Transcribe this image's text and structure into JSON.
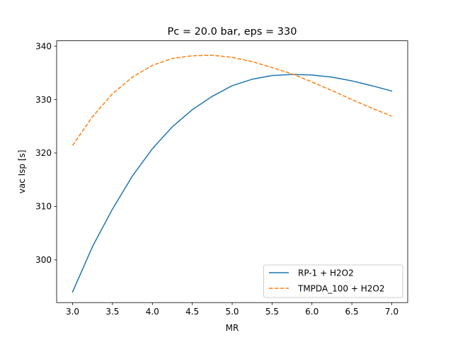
{
  "chart_data": {
    "type": "line",
    "title": "Pc = 20.0 bar, eps = 330",
    "xlabel": "MR",
    "ylabel": "vac Isp [s]",
    "xlim": [
      2.8,
      7.2
    ],
    "ylim": [
      292.0,
      341.0
    ],
    "x_ticks": [
      3.0,
      3.5,
      4.0,
      4.5,
      5.0,
      5.5,
      6.0,
      6.5,
      7.0
    ],
    "x_tick_labels": [
      "3.0",
      "3.5",
      "4.0",
      "4.5",
      "5.0",
      "5.5",
      "6.0",
      "6.5",
      "7.0"
    ],
    "y_ticks": [
      300,
      310,
      320,
      330,
      340
    ],
    "y_tick_labels": [
      "300",
      "310",
      "320",
      "330",
      "340"
    ],
    "grid": false,
    "legend_position": "lower-right",
    "series": [
      {
        "name": "RP-1 + H2O2",
        "color": "#1f77b4",
        "style": "solid",
        "x": [
          3.0,
          3.25,
          3.5,
          3.75,
          4.0,
          4.25,
          4.5,
          4.75,
          5.0,
          5.25,
          5.5,
          5.75,
          6.0,
          6.25,
          6.5,
          6.75,
          7.0
        ],
        "values": [
          294.0,
          302.5,
          309.5,
          315.7,
          320.8,
          324.9,
          328.1,
          330.6,
          332.6,
          333.8,
          334.5,
          334.7,
          334.6,
          334.2,
          333.5,
          332.6,
          331.6
        ]
      },
      {
        "name": "TMPDA_100 + H2O2",
        "color": "#ff7f0e",
        "style": "dashed",
        "x": [
          3.0,
          3.25,
          3.5,
          3.75,
          4.0,
          4.25,
          4.5,
          4.75,
          5.0,
          5.25,
          5.5,
          5.75,
          6.0,
          6.25,
          6.5,
          6.75,
          7.0
        ],
        "values": [
          321.4,
          326.8,
          331.1,
          334.2,
          336.4,
          337.7,
          338.2,
          338.3,
          337.9,
          337.1,
          336.0,
          334.8,
          333.3,
          331.7,
          330.0,
          328.4,
          326.9
        ]
      }
    ]
  }
}
